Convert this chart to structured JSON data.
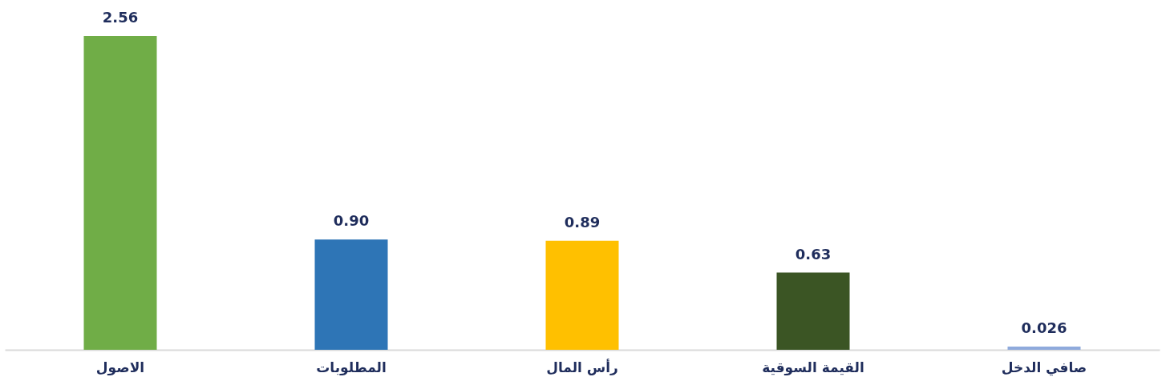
{
  "chart_data": {
    "type": "bar",
    "categories": [
      "الاصول",
      "المطلوبات",
      "رأس المال",
      "القيمة السوقية",
      "صافي الدخل"
    ],
    "values": [
      2.56,
      0.9,
      0.89,
      0.63,
      0.026
    ],
    "colors": [
      "#70ad47",
      "#2e75b6",
      "#ffc000",
      "#3b5524",
      "#8faadc"
    ],
    "value_labels": [
      "2.56",
      "0.90",
      "0.89",
      "0.63",
      "0.026"
    ],
    "ylim": [
      0,
      2.56
    ],
    "tick_labels": "x",
    "grid": false,
    "legend": false
  }
}
